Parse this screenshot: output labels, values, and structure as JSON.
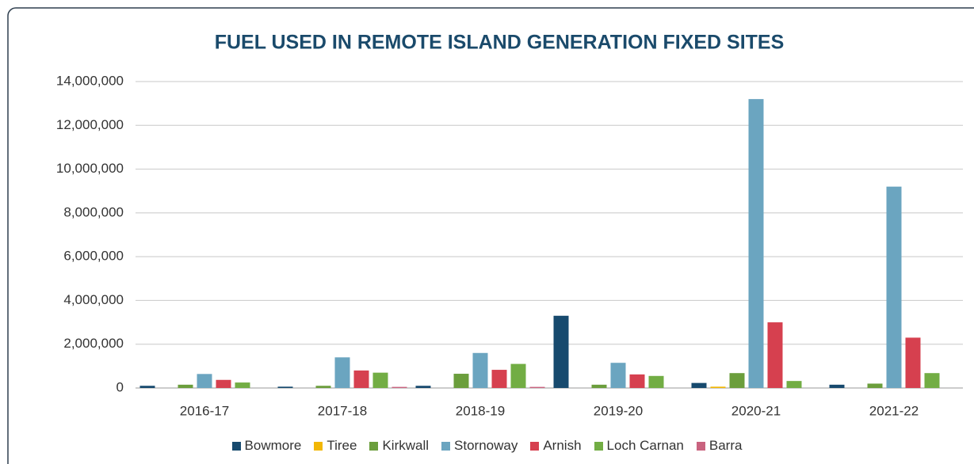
{
  "chart_data": {
    "type": "bar",
    "title": "FUEL USED IN REMOTE ISLAND GENERATION FIXED SITES",
    "categories": [
      "2016-17",
      "2017-18",
      "2018-19",
      "2019-20",
      "2020-21",
      "2021-22"
    ],
    "series": [
      {
        "name": "Bowmore",
        "color": "#174a6e",
        "values": [
          100000,
          60000,
          100000,
          3300000,
          230000,
          150000
        ]
      },
      {
        "name": "Tiree",
        "color": "#f2b705",
        "values": [
          0,
          0,
          0,
          0,
          60000,
          0
        ]
      },
      {
        "name": "Kirkwall",
        "color": "#6b9e3c",
        "values": [
          150000,
          100000,
          650000,
          150000,
          680000,
          200000
        ]
      },
      {
        "name": "Stornoway",
        "color": "#6ba5c0",
        "values": [
          640000,
          1400000,
          1600000,
          1150000,
          13200000,
          9200000
        ]
      },
      {
        "name": "Arnish",
        "color": "#d6404f",
        "values": [
          370000,
          800000,
          830000,
          620000,
          3000000,
          2300000
        ]
      },
      {
        "name": "Loch Carnan",
        "color": "#72ad44",
        "values": [
          250000,
          700000,
          1100000,
          550000,
          320000,
          680000
        ]
      },
      {
        "name": "Barra",
        "color": "#c9637f",
        "values": [
          0,
          50000,
          50000,
          0,
          0,
          0
        ]
      }
    ],
    "ylim": [
      0,
      14000000
    ],
    "yticks": [
      0,
      {
        "value": 2000000,
        "label": "2,000,000"
      },
      {
        "value": 4000000,
        "label": "4,000,000"
      },
      {
        "value": 6000000,
        "label": "6,000,000"
      },
      {
        "value": 8000000,
        "label": "8,000,000"
      },
      {
        "value": 10000000,
        "label": "10,000,000"
      },
      {
        "value": 12000000,
        "label": "12,000,000"
      },
      {
        "value": 14000000,
        "label": "14,000,000"
      }
    ],
    "grid": true,
    "legend": "bottom"
  }
}
